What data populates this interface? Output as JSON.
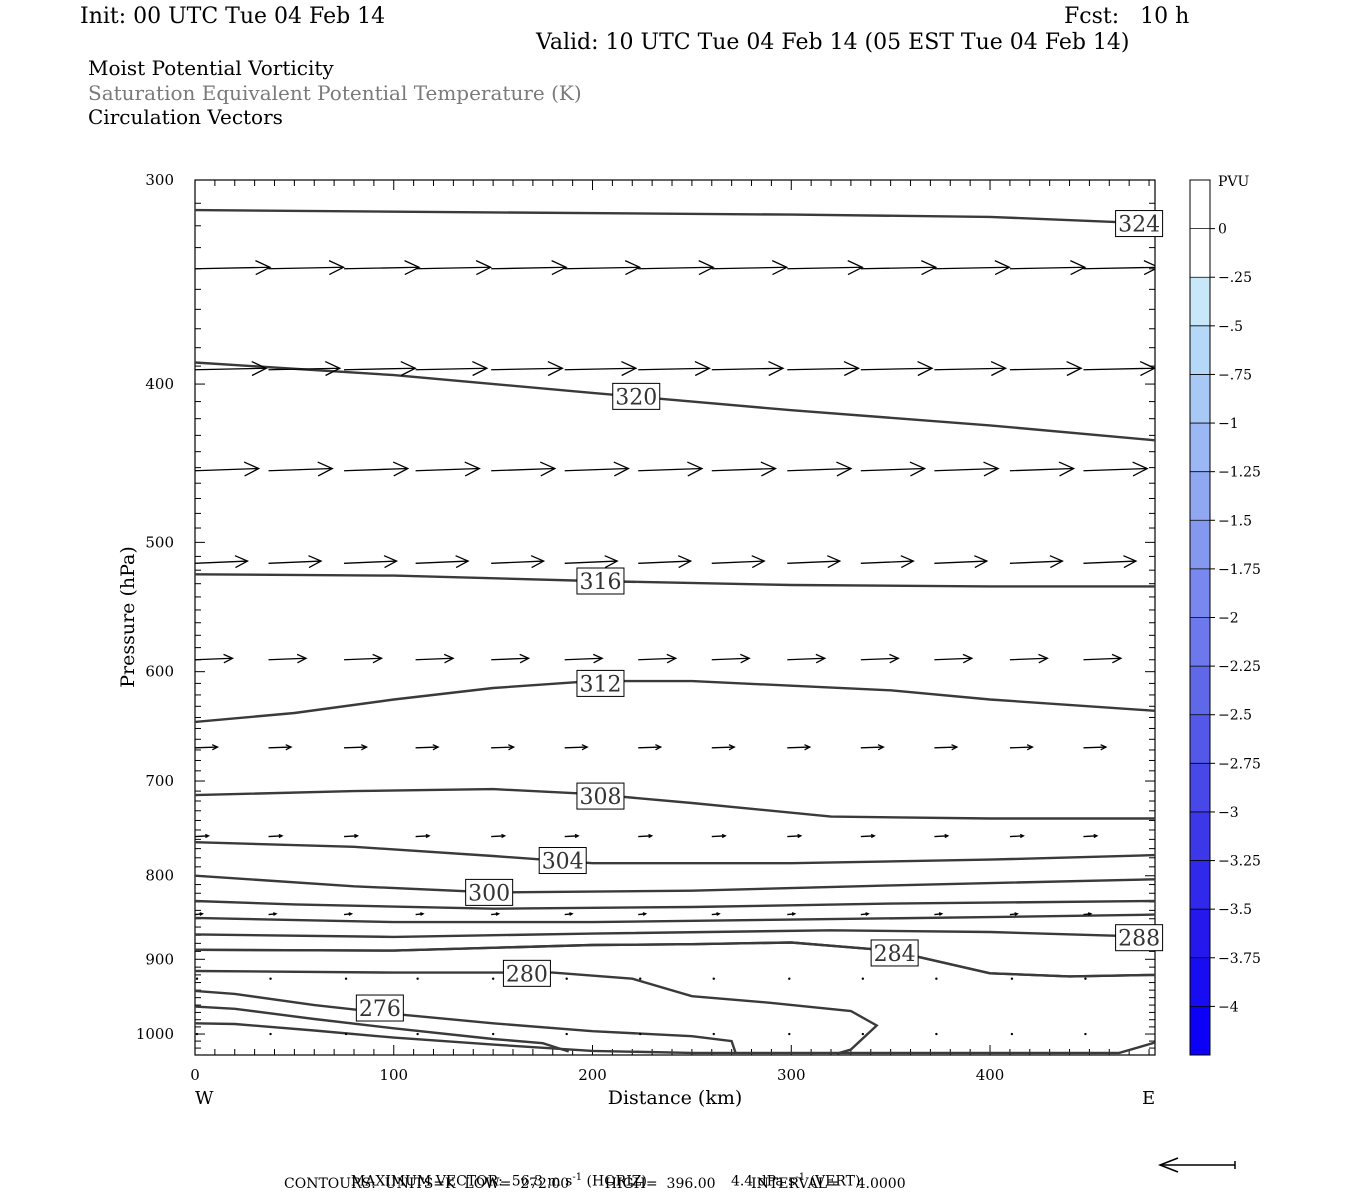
{
  "header": {
    "init": "Init: 00 UTC Tue 04 Feb 14",
    "fcst": "Fcst:   10 h",
    "valid": "Valid: 10 UTC Tue 04 Feb 14 (05 EST Tue 04 Feb 14)",
    "titles": [
      "Moist Potential Vorticity",
      "Saturation Equivalent Potential Temperature (K)",
      "Circulation Vectors"
    ]
  },
  "footer": {
    "line1_a": "MAXIMUM VECTOR:  56.3 m s",
    "line1_b": " (HORIZ)",
    "line1_c": "4.4 dPa s",
    "line1_d": " (VERT)",
    "sup": "-1",
    "line2": "CONTOURS:  UNITS=K  LOW=  272.00        HIGH=  396.00        INTERVAL=    4.0000"
  },
  "colors": {
    "contour": "#3a3a3a",
    "vector": "#000000",
    "colorbar": [
      "#ffffff",
      "#ffffff",
      "#c8e8fa",
      "#b6d8f8",
      "#a8c8f6",
      "#9cb8f4",
      "#90a8f2",
      "#8498f0",
      "#7888ee",
      "#6c78ec",
      "#6068ea",
      "#5458e8",
      "#4848e8",
      "#3c38e8",
      "#3028ea",
      "#2418ec",
      "#180cf0",
      "#0c00f6"
    ]
  },
  "chart_data": {
    "type": "cross-section",
    "xlabel": "Distance (km)",
    "ylabel": "Pressure (hPa)",
    "xlim": [
      0,
      483
    ],
    "ylim": [
      1030,
      300
    ],
    "yscale": "log",
    "xticks": [
      "0",
      "100",
      "200",
      "300",
      "400"
    ],
    "xtick_values": [
      0,
      100,
      200,
      300,
      400
    ],
    "yticks": [
      "300",
      "400",
      "500",
      "600",
      "700",
      "800",
      "900",
      "1000"
    ],
    "ytick_values": [
      300,
      400,
      500,
      600,
      700,
      800,
      900,
      1000
    ],
    "left_end": "W",
    "right_end": "E",
    "colorbar": {
      "unit": "PVU",
      "labels": [
        "0",
        "-.25",
        "-.5",
        "-.75",
        "-1",
        "-1.25",
        "-1.5",
        "-1.75",
        "-2",
        "-2.25",
        "-2.5",
        "-2.75",
        "-3",
        "-3.25",
        "-3.5",
        "-3.75",
        "-4"
      ]
    },
    "contours": [
      {
        "label": "324",
        "label_at": [
          475,
          319
        ],
        "points": [
          [
            0,
            313
          ],
          [
            150,
            314
          ],
          [
            300,
            315
          ],
          [
            400,
            316
          ],
          [
            483,
            319
          ]
        ]
      },
      {
        "label": "320",
        "label_at": [
          222,
          407
        ],
        "points": [
          [
            0,
            388
          ],
          [
            100,
            395
          ],
          [
            200,
            405
          ],
          [
            300,
            415
          ],
          [
            400,
            424
          ],
          [
            483,
            433
          ]
        ]
      },
      {
        "label": "316",
        "label_at": [
          204,
          528
        ],
        "points": [
          [
            0,
            523
          ],
          [
            100,
            524
          ],
          [
            200,
            528
          ],
          [
            300,
            531
          ],
          [
            400,
            532
          ],
          [
            483,
            532
          ]
        ]
      },
      {
        "label": "312",
        "label_at": [
          204,
          610
        ],
        "points": [
          [
            0,
            644
          ],
          [
            50,
            636
          ],
          [
            100,
            624
          ],
          [
            150,
            614
          ],
          [
            200,
            608
          ],
          [
            250,
            608
          ],
          [
            300,
            612
          ],
          [
            350,
            616
          ],
          [
            400,
            624
          ],
          [
            483,
            634
          ]
        ]
      },
      {
        "label": "308",
        "label_at": [
          204,
          715
        ],
        "points": [
          [
            0,
            714
          ],
          [
            80,
            710
          ],
          [
            150,
            708
          ],
          [
            200,
            713
          ],
          [
            250,
            722
          ],
          [
            320,
            736
          ],
          [
            400,
            738
          ],
          [
            483,
            738
          ]
        ]
      },
      {
        "label": "304",
        "label_at": [
          185,
          783
        ],
        "points": [
          [
            0,
            763
          ],
          [
            80,
            768
          ],
          [
            150,
            778
          ],
          [
            200,
            786
          ],
          [
            300,
            786
          ],
          [
            400,
            782
          ],
          [
            483,
            777
          ]
        ]
      },
      {
        "label": "300",
        "label_at": [
          148,
          819
        ],
        "points": [
          [
            0,
            800
          ],
          [
            80,
            812
          ],
          [
            150,
            819
          ],
          [
            250,
            817
          ],
          [
            350,
            811
          ],
          [
            483,
            804
          ]
        ]
      },
      {
        "label": "",
        "label_at": [],
        "points": [
          [
            0,
            829
          ],
          [
            50,
            833
          ],
          [
            150,
            838
          ],
          [
            250,
            836
          ],
          [
            350,
            832
          ],
          [
            483,
            829
          ]
        ]
      },
      {
        "label": "",
        "label_at": [],
        "points": [
          [
            0,
            849
          ],
          [
            100,
            854
          ],
          [
            200,
            854
          ],
          [
            300,
            851
          ],
          [
            400,
            848
          ],
          [
            483,
            845
          ]
        ]
      },
      {
        "label": "288",
        "label_at": [
          475,
          873
        ],
        "points": [
          [
            0,
            869
          ],
          [
            100,
            872
          ],
          [
            200,
            868
          ],
          [
            320,
            864
          ],
          [
            400,
            866
          ],
          [
            483,
            872
          ]
        ]
      },
      {
        "label": "",
        "label_at": [],
        "points": [
          [
            0,
            888
          ],
          [
            100,
            889
          ],
          [
            200,
            882
          ],
          [
            250,
            881
          ],
          [
            300,
            879
          ],
          [
            350,
            889
          ],
          [
            400,
            918
          ],
          [
            440,
            922
          ],
          [
            483,
            920
          ]
        ]
      },
      {
        "label": "284",
        "label_at": [
          352,
          892
        ],
        "points": [
          [
            0,
            888
          ],
          [
            100,
            889
          ],
          [
            200,
            882
          ],
          [
            250,
            881
          ],
          [
            300,
            879
          ],
          [
            350,
            889
          ],
          [
            400,
            918
          ],
          [
            440,
            922
          ],
          [
            483,
            920
          ]
        ]
      },
      {
        "label": "280",
        "label_at": [
          167,
          918
        ],
        "points": [
          [
            0,
            915
          ],
          [
            100,
            917
          ],
          [
            180,
            917
          ],
          [
            220,
            925
          ],
          [
            250,
            948
          ],
          [
            290,
            957
          ],
          [
            330,
            968
          ],
          [
            343,
            988
          ],
          [
            330,
            1022
          ],
          [
            323,
            1028
          ]
        ]
      },
      {
        "label": "276",
        "label_at": [
          93,
          964
        ],
        "points": [
          [
            0,
            941
          ],
          [
            20,
            945
          ],
          [
            60,
            960
          ],
          [
            100,
            972
          ],
          [
            150,
            985
          ],
          [
            200,
            996
          ],
          [
            250,
            1003
          ],
          [
            270,
            1010
          ],
          [
            272,
            1027
          ]
        ]
      },
      {
        "label": "",
        "label_at": [],
        "points": [
          [
            0,
            962
          ],
          [
            20,
            965
          ],
          [
            60,
            979
          ],
          [
            100,
            992
          ],
          [
            150,
            1007
          ],
          [
            175,
            1013
          ],
          [
            188,
            1025
          ]
        ]
      },
      {
        "label": "",
        "label_at": [],
        "points": [
          [
            0,
            985
          ],
          [
            20,
            986
          ],
          [
            60,
            995
          ],
          [
            100,
            1005
          ],
          [
            150,
            1015
          ],
          [
            200,
            1024
          ],
          [
            250,
            1027
          ],
          [
            350,
            1027
          ],
          [
            465,
            1027
          ],
          [
            483,
            1012
          ]
        ]
      }
    ],
    "vectors": [
      {
        "p": 340,
        "x": [
          0,
          37,
          75,
          111,
          149,
          186,
          223,
          260,
          298,
          335,
          372,
          410,
          447
        ],
        "u": 1.0,
        "w": -0.02
      },
      {
        "p": 392,
        "x": [
          0,
          37,
          75,
          111,
          149,
          186,
          223,
          260,
          298,
          335,
          372,
          410,
          447
        ],
        "u": 0.95,
        "w": -0.02
      },
      {
        "p": 452,
        "x": [
          0,
          37,
          75,
          111,
          149,
          186,
          223,
          260,
          298,
          335,
          372,
          410,
          447
        ],
        "u": 0.85,
        "w": -0.03
      },
      {
        "p": 515,
        "x": [
          0,
          37,
          75,
          111,
          149,
          186,
          223,
          260,
          298,
          335,
          372,
          410,
          447
        ],
        "u": 0.7,
        "w": -0.03
      },
      {
        "p": 590,
        "x": [
          0,
          37,
          75,
          111,
          149,
          186,
          223,
          260,
          298,
          335,
          372,
          410,
          447
        ],
        "u": 0.5,
        "w": -0.02
      },
      {
        "p": 668,
        "x": [
          0,
          37,
          75,
          111,
          149,
          186,
          223,
          260,
          298,
          335,
          372,
          410,
          447
        ],
        "u": 0.3,
        "w": -0.01
      },
      {
        "p": 757,
        "x": [
          0,
          37,
          75,
          111,
          149,
          186,
          223,
          260,
          298,
          335,
          372,
          410,
          447
        ],
        "u": 0.18,
        "w": -0.01
      },
      {
        "p": 845,
        "x": [
          0,
          37,
          75,
          111,
          149,
          186,
          223,
          260,
          298,
          335,
          372,
          410,
          447
        ],
        "u": 0.1,
        "w": -0.01
      },
      {
        "p": 925,
        "x": [
          0,
          37,
          75,
          111,
          149,
          186,
          223,
          260,
          298,
          335,
          372,
          410,
          447
        ],
        "u": 0.03,
        "w": 0.0
      },
      {
        "p": 1000,
        "x": [
          0,
          37,
          75,
          111,
          149,
          186,
          223,
          260,
          298,
          335,
          372,
          410,
          447
        ],
        "u": 0.02,
        "w": 0.0
      }
    ]
  }
}
